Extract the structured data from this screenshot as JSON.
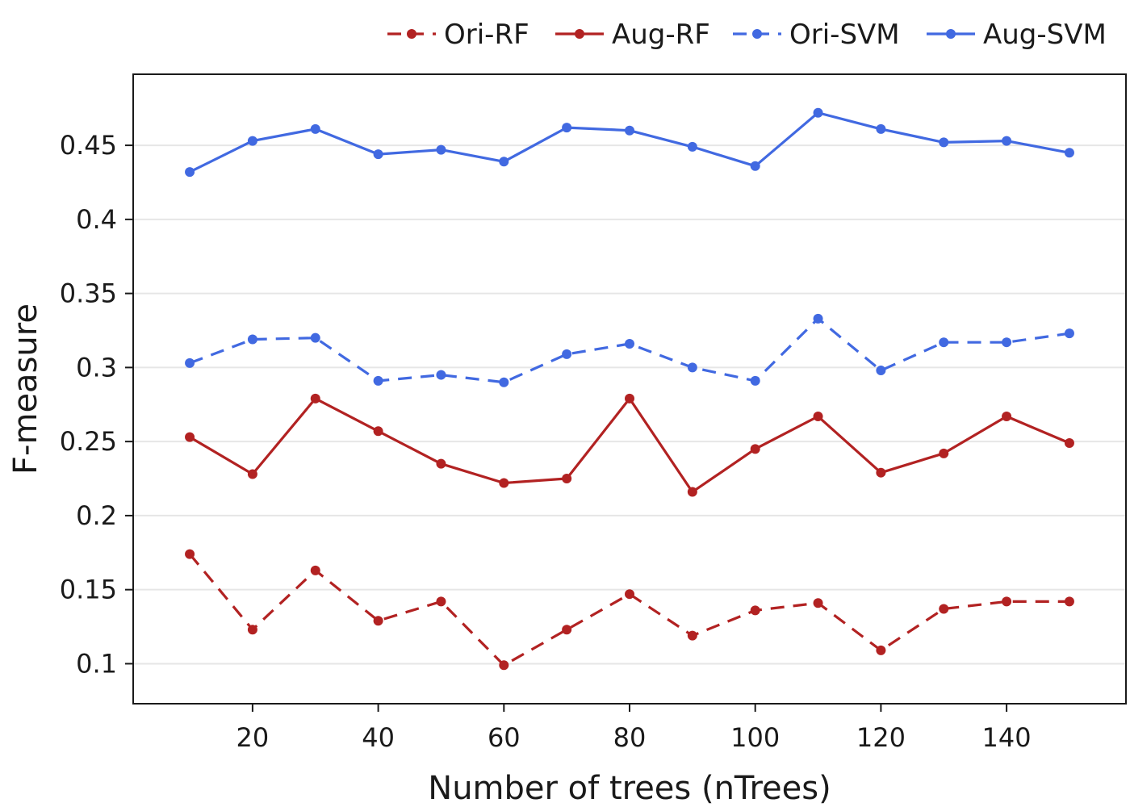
{
  "chart_data": {
    "type": "line",
    "xlabel": "Number of trees (nTrees)",
    "ylabel": "F-measure",
    "xlim": [
      1,
      159
    ],
    "ylim": [
      0.073,
      0.498
    ],
    "xticks": [
      20,
      40,
      60,
      80,
      100,
      120,
      140
    ],
    "xtick_labels": [
      "20",
      "40",
      "60",
      "80",
      "100",
      "120",
      "140"
    ],
    "yticks": [
      0.1,
      0.15,
      0.2,
      0.25,
      0.3,
      0.35,
      0.4,
      0.45
    ],
    "ytick_labels": [
      "0.1",
      "0.15",
      "0.2",
      "0.25",
      "0.3",
      "0.35",
      "0.4",
      "0.45"
    ],
    "grid": "horizontal",
    "legend_position": "top-right",
    "x": [
      10,
      20,
      30,
      40,
      50,
      60,
      70,
      80,
      90,
      100,
      110,
      120,
      130,
      140,
      150
    ],
    "series": [
      {
        "name": "Ori-RF",
        "color": "#b22222",
        "dashed": true,
        "values": [
          0.174,
          0.123,
          0.163,
          0.129,
          0.142,
          0.099,
          0.123,
          0.147,
          0.119,
          0.136,
          0.141,
          0.109,
          0.137,
          0.142,
          0.142
        ]
      },
      {
        "name": "Aug-RF",
        "color": "#b22222",
        "dashed": false,
        "values": [
          0.253,
          0.228,
          0.279,
          0.257,
          0.235,
          0.222,
          0.225,
          0.279,
          0.216,
          0.245,
          0.267,
          0.229,
          0.242,
          0.267,
          0.249
        ]
      },
      {
        "name": "Ori-SVM",
        "color": "#4169e1",
        "dashed": true,
        "values": [
          0.303,
          0.319,
          0.32,
          0.291,
          0.295,
          0.29,
          0.309,
          0.316,
          0.3,
          0.291,
          0.333,
          0.298,
          0.317,
          0.317,
          0.323
        ]
      },
      {
        "name": "Aug-SVM",
        "color": "#4169e1",
        "dashed": false,
        "values": [
          0.432,
          0.453,
          0.461,
          0.444,
          0.447,
          0.439,
          0.462,
          0.46,
          0.449,
          0.436,
          0.472,
          0.461,
          0.452,
          0.453,
          0.445
        ]
      }
    ]
  }
}
